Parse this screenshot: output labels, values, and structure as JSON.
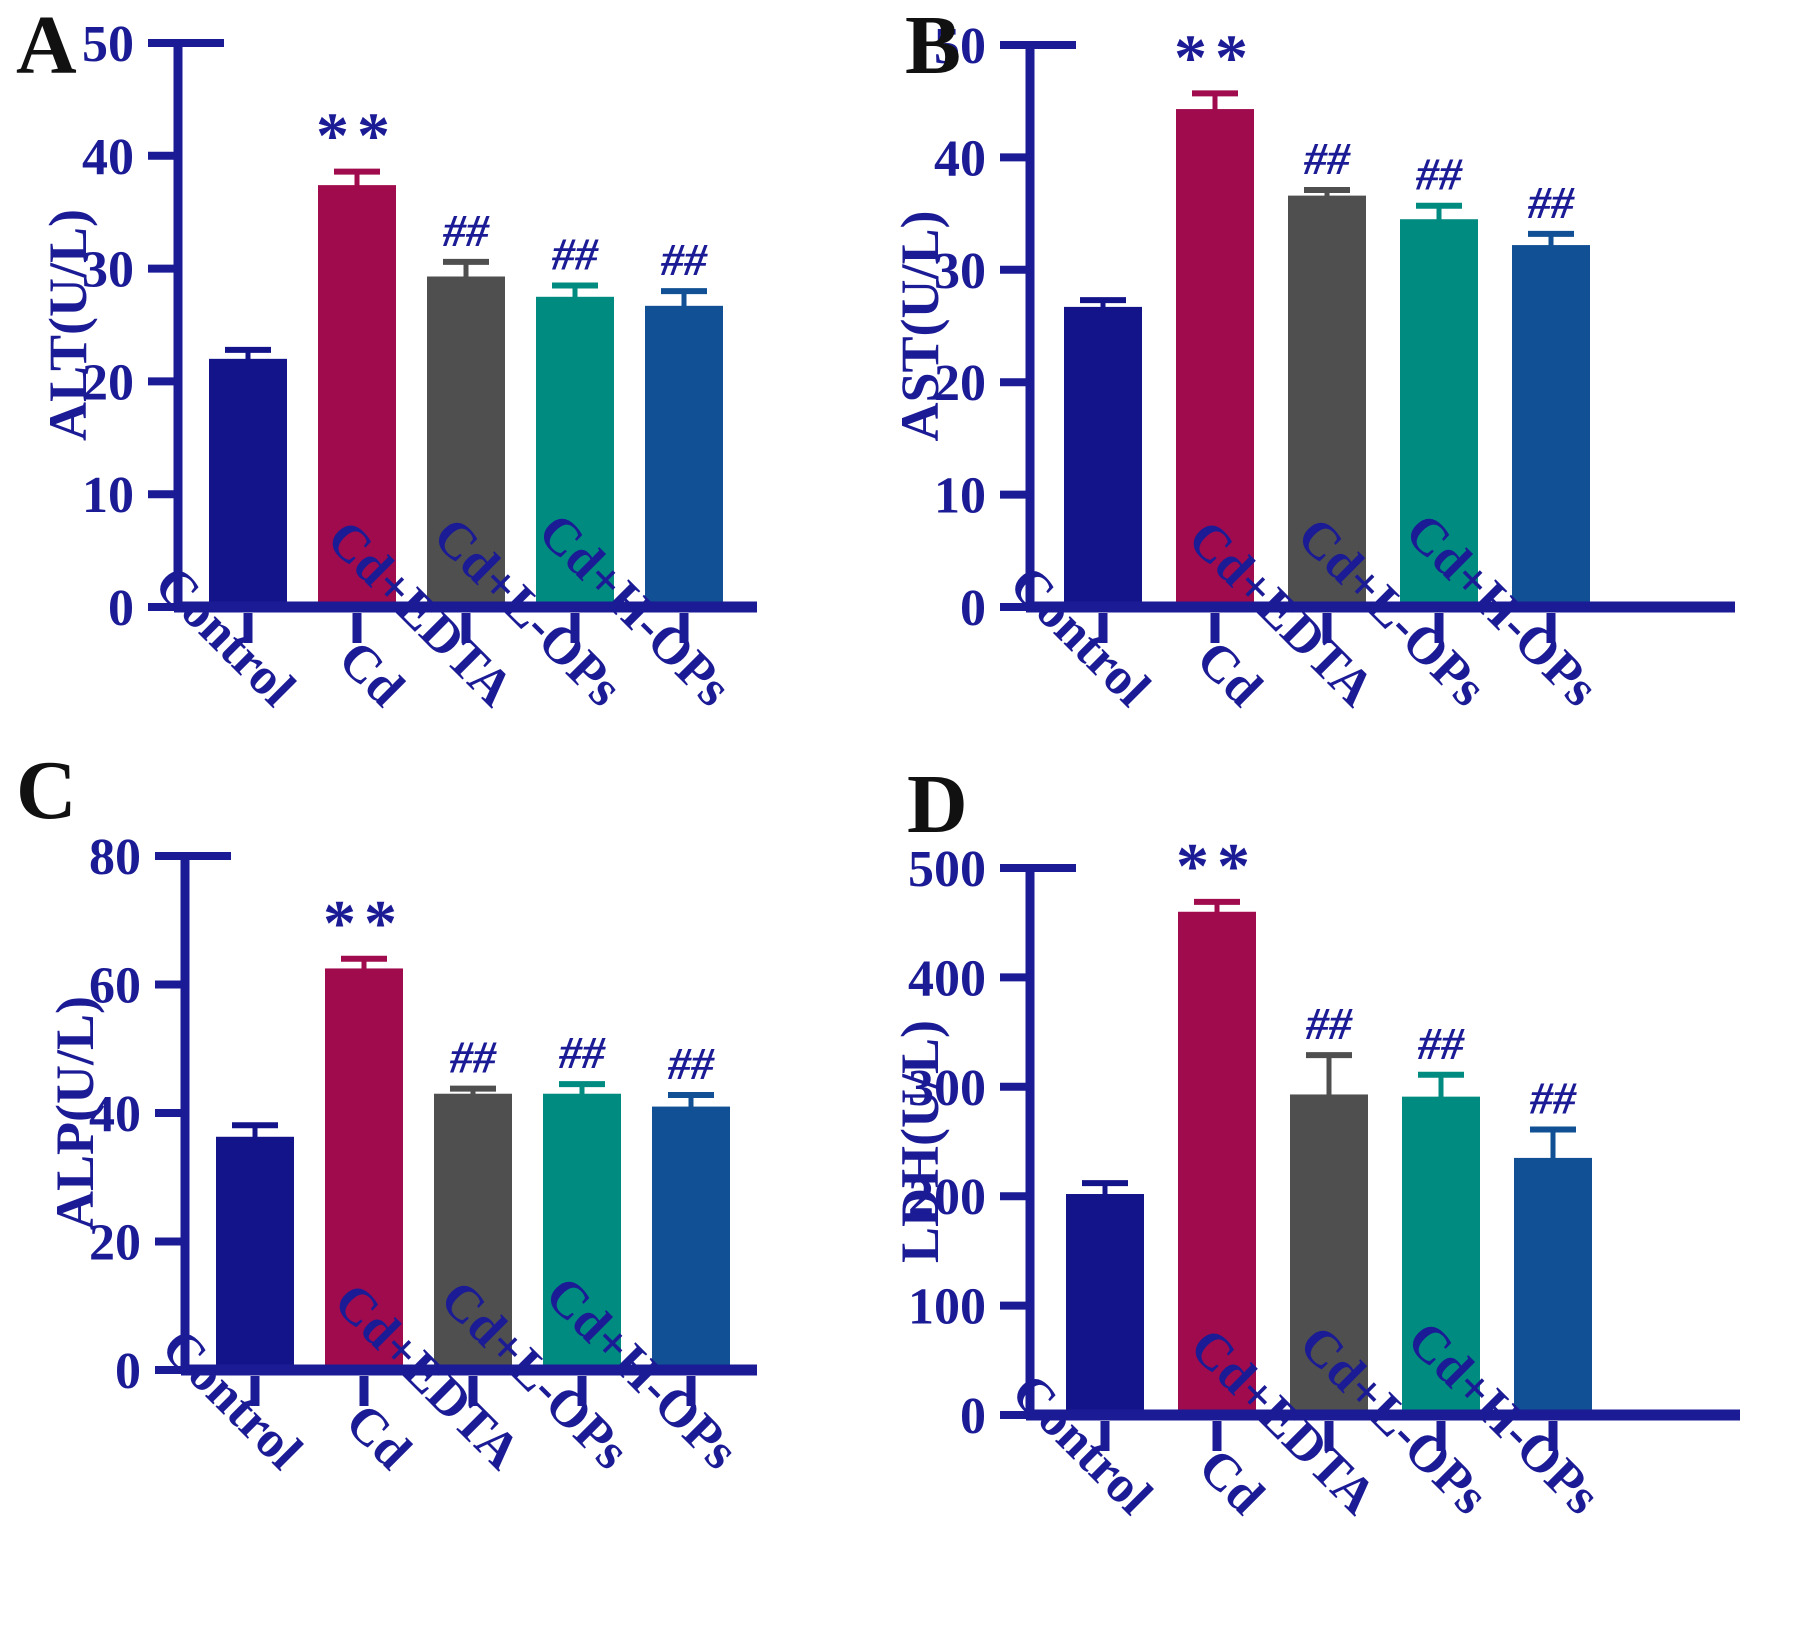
{
  "figure": {
    "background": "#ffffff",
    "axis_color": "#1B1B96",
    "text_color": "#1B1B96",
    "panel_letter_color": "#111111",
    "groups": [
      "Control",
      "Cd",
      "Cd+EDTA",
      "Cd+L-OPs",
      "Cd+H-OPs"
    ],
    "bar_colors": [
      "#14148A",
      "#A00B4E",
      "#4F4F4F",
      "#008B80",
      "#115095"
    ],
    "significance_symbols": {
      "vs_control": "**",
      "vs_cd": "##"
    }
  },
  "chart_data": [
    {
      "panel_label": "A",
      "type": "bar",
      "title": "",
      "xlabel": "",
      "ylabel": "ALT(U/L)",
      "ylim": [
        0,
        50
      ],
      "yticks": [
        0,
        10,
        20,
        30,
        40,
        50
      ],
      "categories": [
        "Control",
        "Cd",
        "Cd+EDTA",
        "Cd+L-OPs",
        "Cd+H-OPs"
      ],
      "values": [
        22.0,
        37.4,
        29.3,
        27.5,
        26.7
      ],
      "errors": [
        0.8,
        1.2,
        1.3,
        1.0,
        1.3
      ],
      "annotations": [
        "",
        "**",
        "##",
        "##",
        "##"
      ],
      "grid": "off",
      "legend": "none"
    },
    {
      "panel_label": "B",
      "type": "bar",
      "title": "",
      "xlabel": "",
      "ylabel": "AST(U/L)",
      "ylim": [
        0,
        50
      ],
      "yticks": [
        0,
        10,
        20,
        30,
        40,
        50
      ],
      "categories": [
        "Control",
        "Cd",
        "Cd+EDTA",
        "Cd+L-OPs",
        "Cd+H-OPs"
      ],
      "values": [
        26.7,
        44.3,
        36.6,
        34.5,
        32.2
      ],
      "errors": [
        0.6,
        1.4,
        0.5,
        1.2,
        1.0
      ],
      "annotations": [
        "",
        "**",
        "##",
        "##",
        "##"
      ],
      "grid": "off",
      "legend": "none"
    },
    {
      "panel_label": "C",
      "type": "bar",
      "title": "",
      "xlabel": "",
      "ylabel": "ALP(U/L)",
      "ylim": [
        0,
        80
      ],
      "yticks": [
        0,
        20,
        40,
        60,
        80
      ],
      "categories": [
        "Control",
        "Cd",
        "Cd+EDTA",
        "Cd+L-OPs",
        "Cd+H-OPs"
      ],
      "values": [
        36.3,
        62.5,
        43.0,
        43.0,
        41.0
      ],
      "errors": [
        1.8,
        1.5,
        0.8,
        1.5,
        1.8
      ],
      "annotations": [
        "",
        "**",
        "##",
        "##",
        "##"
      ],
      "grid": "off",
      "legend": "none"
    },
    {
      "panel_label": "D",
      "type": "bar",
      "title": "",
      "xlabel": "",
      "ylabel": "LDH(U/L)",
      "ylim": [
        0,
        500
      ],
      "yticks": [
        0,
        100,
        200,
        300,
        400,
        500
      ],
      "categories": [
        "Control",
        "Cd",
        "Cd+EDTA",
        "Cd+L-OPs",
        "Cd+H-OPs"
      ],
      "values": [
        202,
        460,
        293,
        291,
        235
      ],
      "errors": [
        10,
        9,
        36,
        20,
        26
      ],
      "annotations": [
        "",
        "**",
        "##",
        "##",
        "##"
      ],
      "grid": "off",
      "legend": "none"
    }
  ]
}
